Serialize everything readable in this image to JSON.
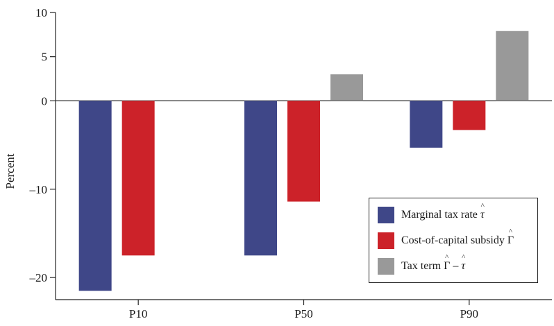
{
  "chart_data": {
    "type": "bar",
    "categories": [
      "P10",
      "P50",
      "P90"
    ],
    "series": [
      {
        "name": "Marginal tax rate τ̂",
        "values": [
          -21.5,
          -17.5,
          -5.3
        ],
        "color": "#3f4788"
      },
      {
        "name": "Cost-of-capital subsidy Γ̂",
        "values": [
          -17.5,
          -11.4,
          -3.3
        ],
        "color": "#cc2229"
      },
      {
        "name": "Tax term Γ̂ − τ̂",
        "values": [
          0,
          3.0,
          7.9
        ],
        "color": "#999999"
      }
    ],
    "ylabel": "Percent",
    "ylim": [
      -22.5,
      10
    ],
    "yticks": [
      10,
      5,
      0,
      -10,
      -20
    ],
    "ytick_labels": [
      "10",
      "5",
      "0",
      "–10",
      "–20"
    ],
    "grid": false,
    "legend_placement": "bottom-right"
  },
  "legend": {
    "items": [
      {
        "text": "Marginal tax rate ",
        "symbol": "τ",
        "hat": true,
        "color": "#3f4788"
      },
      {
        "text": "Cost-of-capital subsidy ",
        "symbol": "Γ",
        "hat": true,
        "color": "#cc2229"
      },
      {
        "text": "Tax term ",
        "symbol": "Γ",
        "minus": " – ",
        "symbol2": "τ",
        "color": "#999999"
      }
    ]
  }
}
